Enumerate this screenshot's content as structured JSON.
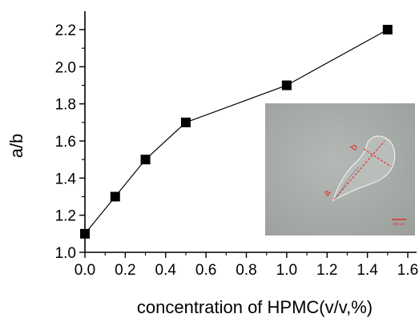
{
  "chart_data": {
    "type": "line",
    "title": "",
    "xlabel": "concentration of HPMC(v/v,%)",
    "ylabel": "a/b",
    "xlim": [
      0.0,
      1.6
    ],
    "ylim": [
      1.0,
      2.2
    ],
    "xticks": [
      "0.0",
      "0.2",
      "0.4",
      "0.6",
      "0.8",
      "1.0",
      "1.2",
      "1.4",
      "1.6"
    ],
    "yticks": [
      "1.0",
      "1.2",
      "1.4",
      "1.6",
      "1.8",
      "2.0",
      "2.2"
    ],
    "grid": false,
    "marker": "square",
    "series": [
      {
        "x": [
          0.0,
          0.15,
          0.3,
          0.5,
          1.0,
          1.5
        ],
        "y": [
          1.1,
          1.3,
          1.5,
          1.7,
          1.9,
          2.2
        ]
      }
    ],
    "colors": {
      "line": "#000000",
      "marker": "#000000"
    }
  },
  "inset": {
    "labels": [
      "a",
      "b"
    ],
    "scale_bar_text": "200 µm",
    "colors": {
      "background": "#a9aeaa",
      "annotation": "#e0302c"
    }
  }
}
